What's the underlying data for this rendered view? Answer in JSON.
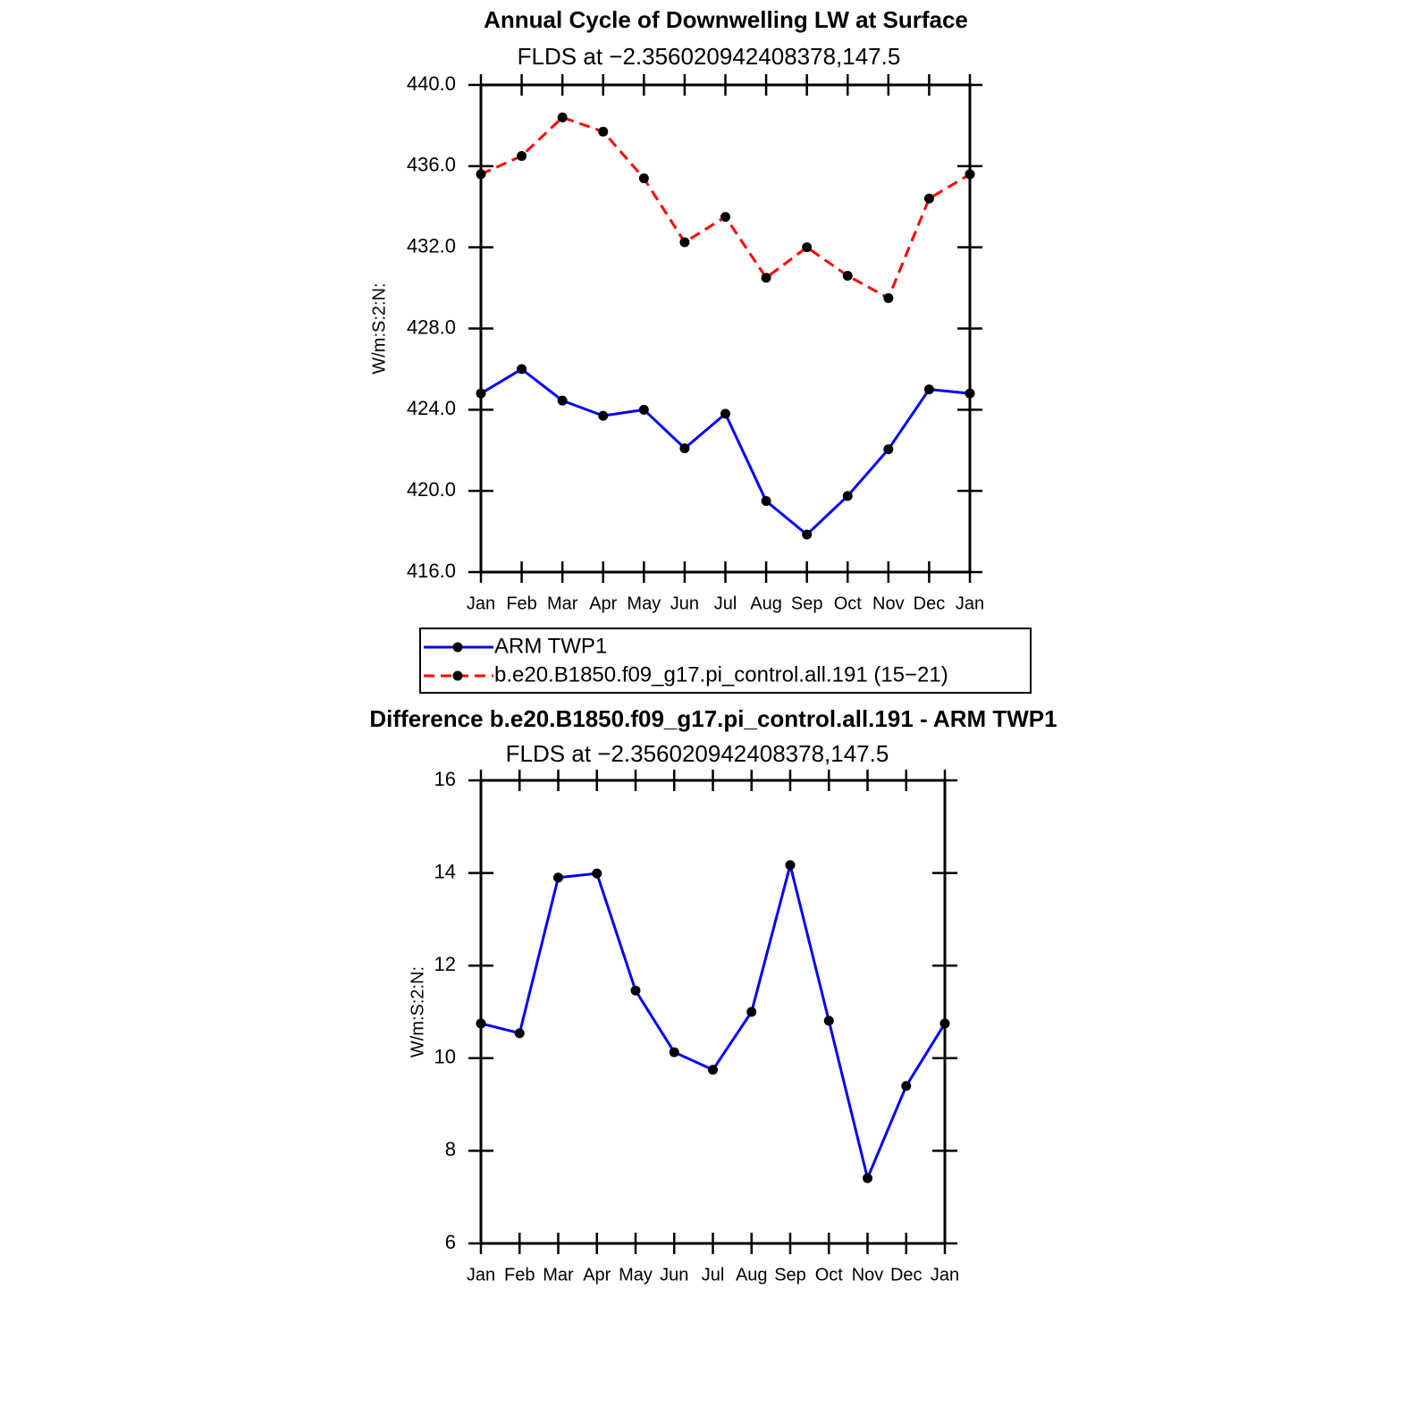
{
  "chart_data": [
    {
      "type": "line",
      "title": "Annual Cycle of Downwelling LW at Surface",
      "subtitle": "FLDS at −2.356020942408378,147.5",
      "ylabel": "W/m:S:2:N:",
      "categories": [
        "Jan",
        "Feb",
        "Mar",
        "Apr",
        "May",
        "Jun",
        "Jul",
        "Aug",
        "Sep",
        "Oct",
        "Nov",
        "Dec",
        "Jan"
      ],
      "series": [
        {
          "name": "ARM TWP1",
          "color": "#0000ff",
          "line_style": "solid",
          "marker_color": "#000000",
          "values": [
            424.8,
            426.0,
            424.45,
            423.7,
            424.0,
            422.1,
            423.8,
            419.5,
            417.85,
            419.75,
            422.05,
            425.0,
            424.8
          ]
        },
        {
          "name": "b.e20.B1850.f09_g17.pi_control.all.191 (15−21)",
          "color": "#ff0000",
          "line_style": "dashed",
          "marker_color": "#000000",
          "values": [
            435.6,
            436.5,
            438.4,
            437.7,
            435.4,
            432.25,
            433.5,
            430.5,
            432.0,
            430.6,
            429.5,
            434.4,
            435.6
          ]
        }
      ],
      "ylim": [
        416,
        440
      ],
      "yticks": [
        {
          "value": 416,
          "label": "416.0"
        },
        {
          "value": 420,
          "label": "420.0"
        },
        {
          "value": 424,
          "label": "424.0"
        },
        {
          "value": 428,
          "label": "428.0"
        },
        {
          "value": 432,
          "label": "432.0"
        },
        {
          "value": 436,
          "label": "436.0"
        },
        {
          "value": 440,
          "label": "440.0"
        }
      ],
      "legend": "bottom"
    },
    {
      "type": "line",
      "title": "Difference b.e20.B1850.f09_g17.pi_control.all.191 - ARM TWP1",
      "subtitle": "FLDS at −2.356020942408378,147.5",
      "ylabel": "W/m:S:2:N:",
      "categories": [
        "Jan",
        "Feb",
        "Mar",
        "Apr",
        "May",
        "Jun",
        "Jul",
        "Aug",
        "Sep",
        "Oct",
        "Nov",
        "Dec",
        "Jan"
      ],
      "series": [
        {
          "color": "#0000ff",
          "line_style": "solid",
          "marker_color": "#000000",
          "values": [
            10.75,
            10.54,
            13.9,
            13.99,
            11.46,
            10.13,
            9.75,
            11.0,
            14.17,
            10.81,
            7.41,
            9.4,
            10.75
          ]
        }
      ],
      "ylim": [
        6,
        16
      ],
      "yticks": [
        6,
        8,
        10,
        12,
        14,
        16
      ]
    }
  ]
}
